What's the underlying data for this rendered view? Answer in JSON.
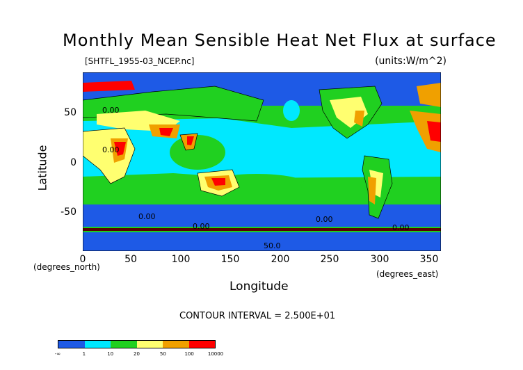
{
  "chart_data": {
    "type": "heatmap",
    "title": "Monthly Mean Sensible Heat Net Flux at surface",
    "subtitle": "[SHTFL_1955-03_NCEP.nc]",
    "units": "(units:W/m^2)",
    "xlabel": "Longitude",
    "ylabel": "Latitude",
    "x_unit_label": "(degrees_east)",
    "y_unit_label": "(degrees_north)",
    "xlim": [
      0,
      360
    ],
    "ylim": [
      -90,
      90
    ],
    "x_ticks": [
      0,
      50,
      100,
      150,
      200,
      250,
      300,
      350
    ],
    "y_ticks": [
      50,
      0,
      -50
    ],
    "contour_interval_text": "CONTOUR INTERVAL = 2.500E+01",
    "contour_labels": [
      "0.00",
      "0.00",
      "0.00",
      "0.00",
      "0.00",
      "0.00",
      "50.0"
    ],
    "colorbar": {
      "labels": [
        "-∞",
        "1",
        "10",
        "20",
        "50",
        "100",
        "10000"
      ],
      "colors": [
        "#1e5ae6",
        "#1e5ae6",
        "#00e8ff",
        "#00e8ff",
        "#20d020",
        "#20d020",
        "#ffff70",
        "#ffff70",
        "#f0a000",
        "#f0a000",
        "#ff0000",
        "#ff0000"
      ]
    },
    "palette": {
      "deep": "#1e5ae6",
      "low": "#00e8ff",
      "mid": "#20d020",
      "yellow": "#ffff70",
      "orange": "#f0a000",
      "red": "#ff0000",
      "dark": "#5a0000"
    }
  }
}
